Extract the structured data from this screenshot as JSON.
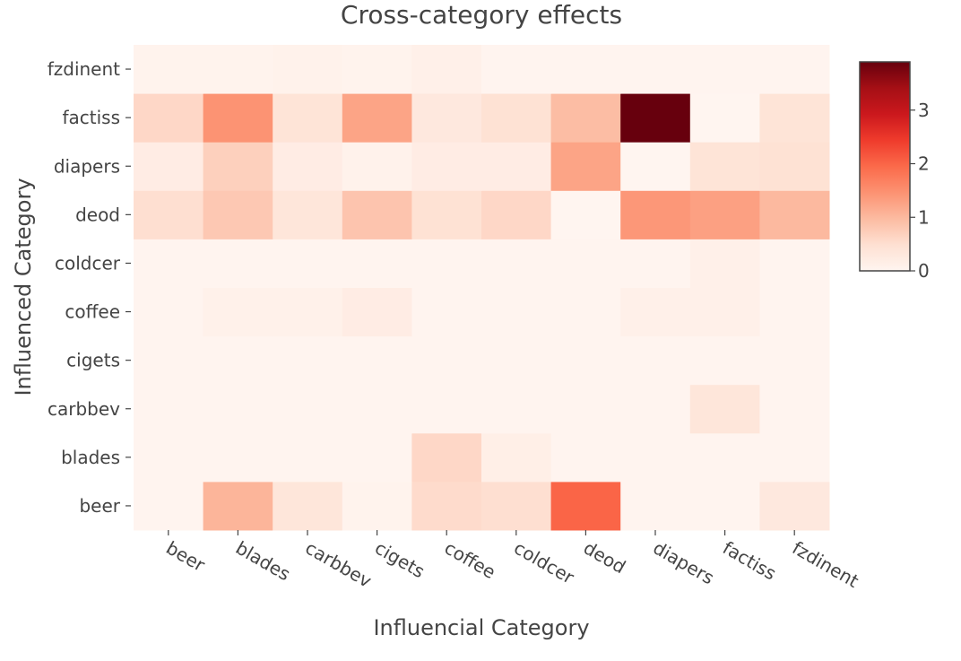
{
  "chart_data": {
    "type": "heatmap",
    "title": "Cross-category effects",
    "xlabel": "Influencial Category",
    "ylabel": "Influenced Category",
    "x_categories": [
      "beer",
      "blades",
      "carbbev",
      "cigets",
      "coffee",
      "coldcer",
      "deod",
      "diapers",
      "factiss",
      "fzdinent"
    ],
    "y_categories": [
      "beer",
      "blades",
      "carbbev",
      "cigets",
      "coffee",
      "coldcer",
      "deod",
      "diapers",
      "factiss",
      "fzdinent"
    ],
    "z": [
      [
        0.02,
        1.05,
        0.35,
        0.05,
        0.55,
        0.5,
        2.0,
        0.02,
        0.02,
        0.3
      ],
      [
        0.02,
        0.02,
        0.02,
        0.02,
        0.6,
        0.15,
        0.02,
        0.02,
        0.02,
        0.02
      ],
      [
        0.02,
        0.02,
        0.02,
        0.02,
        0.02,
        0.02,
        0.02,
        0.02,
        0.35,
        0.02
      ],
      [
        0.02,
        0.02,
        0.02,
        0.02,
        0.02,
        0.02,
        0.02,
        0.02,
        0.02,
        0.02
      ],
      [
        0.02,
        0.1,
        0.1,
        0.2,
        0.02,
        0.02,
        0.02,
        0.12,
        0.12,
        0.02
      ],
      [
        0.02,
        0.02,
        0.02,
        0.02,
        0.02,
        0.02,
        0.02,
        0.02,
        0.12,
        0.02
      ],
      [
        0.5,
        0.8,
        0.35,
        0.85,
        0.45,
        0.6,
        0.0,
        1.4,
        1.3,
        1.0
      ],
      [
        0.2,
        0.7,
        0.2,
        0.08,
        0.2,
        0.2,
        1.25,
        0.0,
        0.4,
        0.45
      ],
      [
        0.6,
        1.45,
        0.4,
        1.25,
        0.3,
        0.45,
        0.95,
        3.9,
        0.0,
        0.4
      ],
      [
        0.05,
        0.05,
        0.08,
        0.05,
        0.12,
        0.02,
        0.02,
        0.02,
        0.02,
        0.02
      ]
    ],
    "zlim": [
      0,
      3.9
    ],
    "colorscale": [
      "#fff5f0",
      "#fee0d2",
      "#fcbba1",
      "#fc9272",
      "#fb6a4a",
      "#ef3b2c",
      "#cb181d",
      "#a50f15",
      "#67000d"
    ],
    "colorbar": {
      "ticks": [
        0,
        1,
        2,
        3
      ],
      "tick_labels": [
        "0",
        "1",
        "2",
        "3"
      ]
    },
    "grid": false,
    "legend": "colorbar-right"
  }
}
